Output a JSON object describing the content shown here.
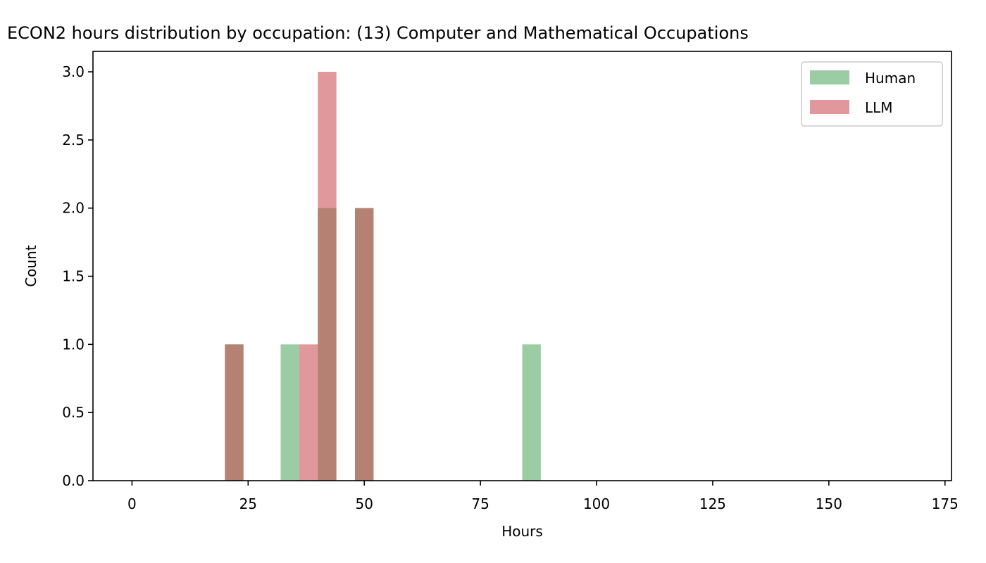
{
  "chart_data": {
    "type": "bar",
    "title": "ECON2 hours distribution by occupation: (13) Computer and Mathematical Occupations",
    "xlabel": "Hours",
    "ylabel": "Count",
    "xlim": [
      -8.4,
      176.4
    ],
    "ylim": [
      0,
      3.15
    ],
    "xticks": [
      0,
      25,
      50,
      75,
      100,
      125,
      150,
      175
    ],
    "yticks": [
      "0.0",
      "0.5",
      "1.0",
      "1.5",
      "2.0",
      "2.5",
      "3.0"
    ],
    "bin_width": 4,
    "legend_position": "upper right",
    "series": [
      {
        "name": "Human",
        "color": "#3a9a4a",
        "alpha": 0.5,
        "bins": [
          {
            "x0": 20,
            "x1": 24,
            "count": 1
          },
          {
            "x0": 32,
            "x1": 36,
            "count": 1
          },
          {
            "x0": 40,
            "x1": 44,
            "count": 2
          },
          {
            "x0": 48,
            "x1": 52,
            "count": 2
          },
          {
            "x0": 84,
            "x1": 88,
            "count": 1
          }
        ]
      },
      {
        "name": "LLM",
        "color": "#c8434a",
        "alpha": 0.55,
        "bins": [
          {
            "x0": 20,
            "x1": 24,
            "count": 1
          },
          {
            "x0": 36,
            "x1": 40,
            "count": 1
          },
          {
            "x0": 40,
            "x1": 44,
            "count": 3
          },
          {
            "x0": 48,
            "x1": 52,
            "count": 2
          }
        ]
      }
    ]
  }
}
